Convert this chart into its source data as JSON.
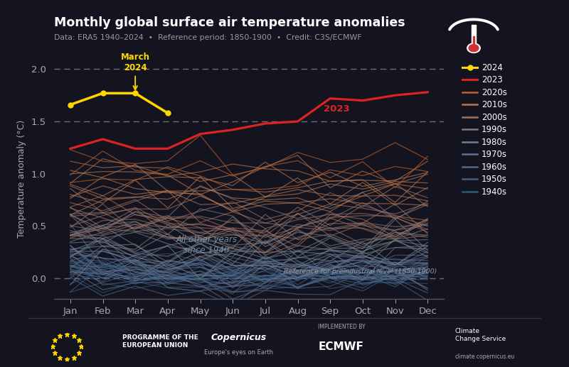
{
  "title": "Monthly global surface air temperature anomalies",
  "subtitle": "Data: ERA5 1940–2024  •  Reference period: 1850-1900  •  Credit: C3S/ECMWF",
  "ylabel": "Temperature anomaly (°C)",
  "bg_color": "#141420",
  "footer_color": "#1a1a28",
  "months": [
    "Jan",
    "Feb",
    "Mar",
    "Apr",
    "May",
    "Jun",
    "Jul",
    "Aug",
    "Sep",
    "Oct",
    "Nov",
    "Dec"
  ],
  "ylim": [
    -0.2,
    2.1
  ],
  "yticks": [
    0.0,
    0.5,
    1.0,
    1.5,
    2.0
  ],
  "dashed_lines": [
    0.0,
    1.5,
    2.0
  ],
  "year_2024": [
    1.66,
    1.77,
    1.77,
    1.58,
    null,
    null,
    null,
    null,
    null,
    null,
    null,
    null
  ],
  "year_2023": [
    1.24,
    1.33,
    1.24,
    1.24,
    1.38,
    1.42,
    1.48,
    1.5,
    1.72,
    1.7,
    1.75,
    1.78
  ],
  "decade_colors": {
    "2020s": "#c0622a",
    "2010s": "#b87850",
    "2000s": "#a07060",
    "1990s": "#807878",
    "1980s": "#708090",
    "1970s": "#607090",
    "1960s": "#506888",
    "1950s": "#406080",
    "1940s": "#305878"
  },
  "annotation_march": "March\n2024",
  "annotation_2023": "2023",
  "ref_text": "Reference for preindustrial level (1850-1900)",
  "other_text": "All other years\nsince 1940",
  "title_color": "#ffffff",
  "subtitle_color": "#999999",
  "year2024_color": "#ffd700",
  "year2023_color": "#dd2222",
  "tick_color": "#aaaaaa",
  "spine_color": "#555566",
  "dashed_color": "#777788"
}
